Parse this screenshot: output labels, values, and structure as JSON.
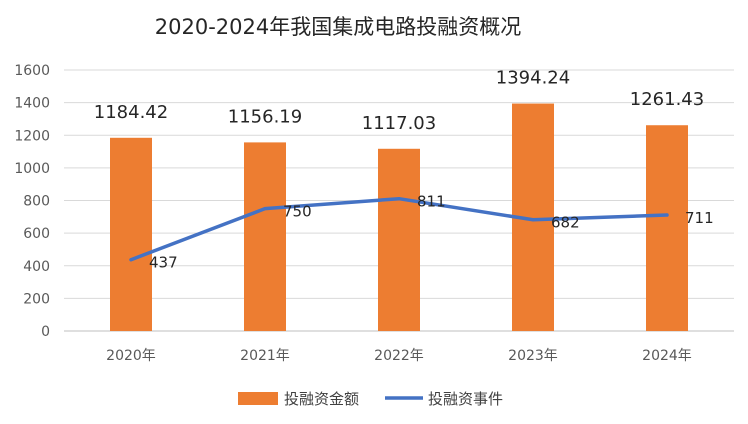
{
  "chart_data": {
    "type": "bar",
    "title": "2020-2024年我国集成电路投融资概况",
    "categories": [
      "2020年",
      "2021年",
      "2022年",
      "2023年",
      "2024年"
    ],
    "series": [
      {
        "name": "投融资金额",
        "type": "bar",
        "color": "#ED7D31",
        "values": [
          1184.42,
          1156.19,
          1117.03,
          1394.24,
          1261.43
        ],
        "labels": [
          "1184.42",
          "1156.19",
          "1117.03",
          "1394.24",
          "1261.43"
        ]
      },
      {
        "name": "投融资事件",
        "type": "line",
        "color": "#4472C4",
        "values": [
          437,
          750,
          811,
          682,
          711
        ],
        "labels": [
          "437",
          "750",
          "811",
          "682",
          "711"
        ]
      }
    ],
    "ylim": [
      0,
      1600
    ],
    "yticks": [
      "0",
      "200",
      "400",
      "600",
      "800",
      "1000",
      "1200",
      "1400",
      "1600"
    ],
    "grid": true,
    "legend": "bottom",
    "xlabel": "",
    "ylabel": ""
  }
}
